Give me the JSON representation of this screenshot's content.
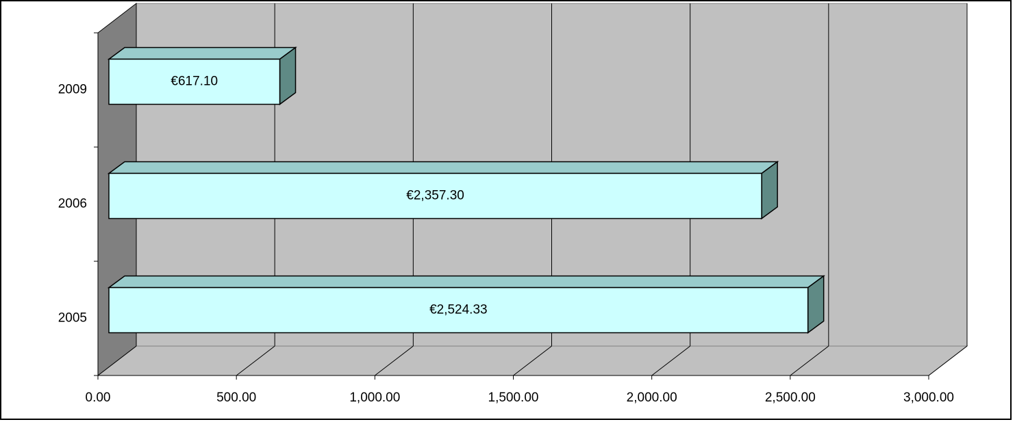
{
  "chart_data": {
    "type": "bar3d_horizontal",
    "categories": [
      "2005",
      "2006",
      "2009"
    ],
    "values": [
      2524.33,
      2357.3,
      617.1
    ],
    "value_labels": [
      "€2,524.33",
      "€2,357.30",
      "€617.10"
    ],
    "color": "#ccffff",
    "xlim": [
      0,
      3000
    ],
    "xticks": [
      {
        "value": 0,
        "label": "0.00"
      },
      {
        "value": 500,
        "label": "500.00"
      },
      {
        "value": 1000,
        "label": "1,000.00"
      },
      {
        "value": 1500,
        "label": "1,500.00"
      },
      {
        "value": 2000,
        "label": "2,000.00"
      },
      {
        "value": 2500,
        "label": "2,500.00"
      },
      {
        "value": 3000,
        "label": "3,000.00"
      }
    ],
    "grid": true
  }
}
